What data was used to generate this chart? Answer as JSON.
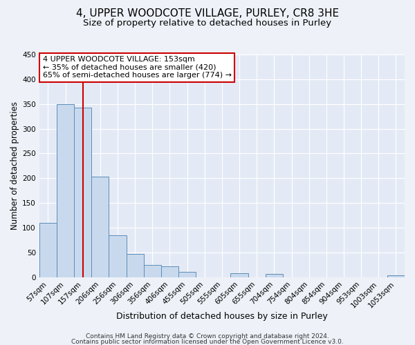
{
  "title": "4, UPPER WOODCOTE VILLAGE, PURLEY, CR8 3HE",
  "subtitle": "Size of property relative to detached houses in Purley",
  "xlabel": "Distribution of detached houses by size in Purley",
  "ylabel": "Number of detached properties",
  "bar_labels": [
    "57sqm",
    "107sqm",
    "157sqm",
    "206sqm",
    "256sqm",
    "306sqm",
    "356sqm",
    "406sqm",
    "455sqm",
    "505sqm",
    "555sqm",
    "605sqm",
    "655sqm",
    "704sqm",
    "754sqm",
    "804sqm",
    "854sqm",
    "904sqm",
    "953sqm",
    "1003sqm",
    "1053sqm"
  ],
  "bar_values": [
    110,
    350,
    343,
    203,
    85,
    47,
    25,
    21,
    11,
    0,
    0,
    8,
    0,
    7,
    0,
    0,
    0,
    0,
    0,
    0,
    4
  ],
  "bar_color": "#c9d9ed",
  "bar_edge_color": "#5b8db8",
  "vline_x_index": 2,
  "vline_color": "#cc0000",
  "ylim": [
    0,
    450
  ],
  "yticks": [
    0,
    50,
    100,
    150,
    200,
    250,
    300,
    350,
    400,
    450
  ],
  "annotation_line1": "4 UPPER WOODCOTE VILLAGE: 153sqm",
  "annotation_line2": "← 35% of detached houses are smaller (420)",
  "annotation_line3": "65% of semi-detached houses are larger (774) →",
  "box_edge_color": "#cc0000",
  "footer_line1": "Contains HM Land Registry data © Crown copyright and database right 2024.",
  "footer_line2": "Contains public sector information licensed under the Open Government Licence v3.0.",
  "bg_color": "#eef2f8",
  "plot_bg_color": "#e4eaf5",
  "grid_color": "#ffffff",
  "title_fontsize": 11,
  "subtitle_fontsize": 9.5,
  "xlabel_fontsize": 9,
  "ylabel_fontsize": 8.5,
  "tick_fontsize": 7.5,
  "annot_fontsize": 8,
  "footer_fontsize": 6.5
}
